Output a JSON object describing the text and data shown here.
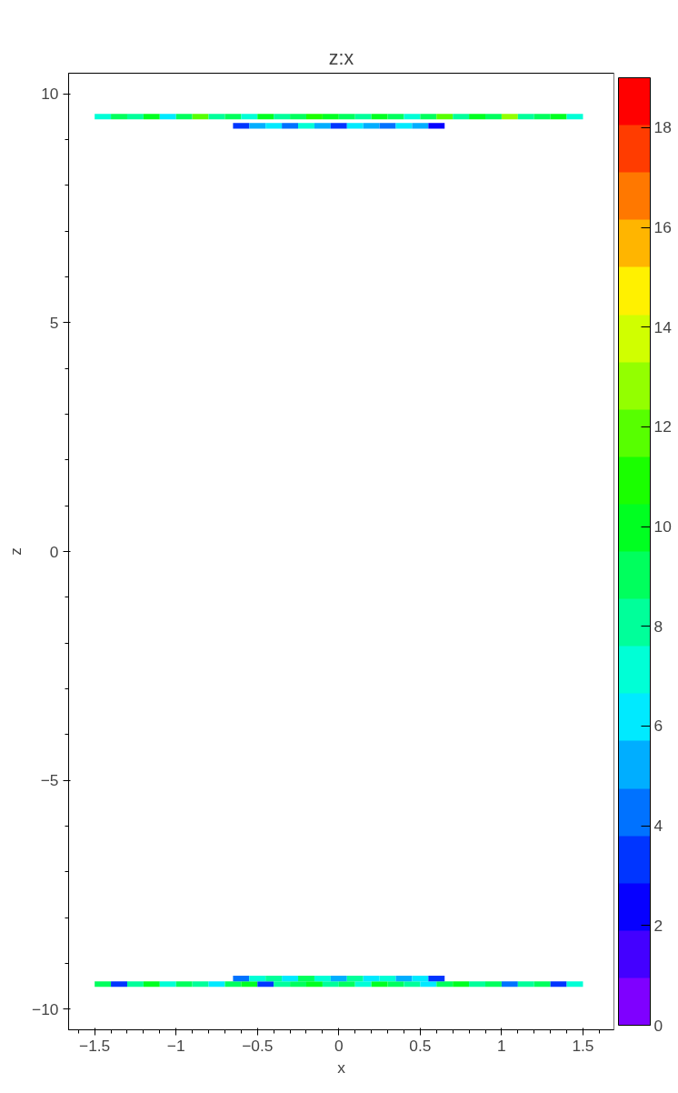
{
  "chart_data": {
    "type": "scatter",
    "title": "z:x",
    "xlabel": "x",
    "ylabel": "z",
    "marker": "square",
    "grid": false,
    "xlim": [
      -1.66,
      1.69
    ],
    "ylim": [
      -10.45,
      10.45
    ],
    "xticks": [
      -1.5,
      -1,
      -0.5,
      0,
      0.5,
      1,
      1.5
    ],
    "yticks": [
      -10,
      -5,
      0,
      5,
      10
    ],
    "clim": [
      0,
      19
    ],
    "cticks": [
      0,
      2,
      4,
      6,
      8,
      10,
      12,
      14,
      16,
      18
    ],
    "x": [
      -1.45,
      -1.35,
      -1.25,
      -1.15,
      -1.05,
      -0.95,
      -0.85,
      -0.75,
      -0.65,
      -0.55,
      -0.45,
      -0.35,
      -0.25,
      -0.15,
      -0.05,
      0.05,
      0.15,
      0.25,
      0.35,
      0.45,
      0.55,
      0.65,
      0.75,
      0.85,
      0.95,
      1.05,
      1.15,
      1.25,
      1.35,
      1.45,
      -0.6,
      -0.5,
      -0.4,
      -0.3,
      -0.2,
      -0.1,
      0,
      0.1,
      0.2,
      0.3,
      0.4,
      0.5,
      0.6,
      -1.45,
      -1.35,
      -1.25,
      -1.15,
      -1.05,
      -0.95,
      -0.85,
      -0.75,
      -0.65,
      -0.55,
      -0.45,
      -0.35,
      -0.25,
      -0.15,
      -0.05,
      0.05,
      0.15,
      0.25,
      0.35,
      0.45,
      0.55,
      0.65,
      0.75,
      0.85,
      0.95,
      1.05,
      1.15,
      1.25,
      1.35,
      1.45,
      -0.6,
      -0.5,
      -0.4,
      -0.3,
      -0.2,
      -0.1,
      0,
      0.1,
      0.2,
      0.3,
      0.4,
      0.5,
      0.6
    ],
    "values": [
      9.5,
      9.5,
      9.5,
      9.5,
      9.5,
      9.5,
      9.5,
      9.5,
      9.5,
      9.5,
      9.5,
      9.5,
      9.5,
      9.5,
      9.5,
      9.5,
      9.5,
      9.5,
      9.5,
      9.5,
      9.5,
      9.5,
      9.5,
      9.5,
      9.5,
      9.5,
      9.5,
      9.5,
      9.5,
      9.5,
      9.3,
      9.3,
      9.3,
      9.3,
      9.3,
      9.3,
      9.3,
      9.3,
      9.3,
      9.3,
      9.3,
      9.3,
      9.3,
      -9.45,
      -9.45,
      -9.45,
      -9.45,
      -9.45,
      -9.45,
      -9.45,
      -9.45,
      -9.45,
      -9.45,
      -9.45,
      -9.45,
      -9.45,
      -9.45,
      -9.45,
      -9.45,
      -9.45,
      -9.45,
      -9.45,
      -9.45,
      -9.45,
      -9.45,
      -9.45,
      -9.45,
      -9.45,
      -9.45,
      -9.45,
      -9.45,
      -9.45,
      -9.45,
      -9.33,
      -9.33,
      -9.33,
      -9.33,
      -9.33,
      -9.33,
      -9.33,
      -9.33,
      -9.33,
      -9.33,
      -9.33,
      -9.33,
      -9.33
    ],
    "cvalues": [
      7,
      9,
      8,
      10,
      6,
      9,
      12,
      8,
      9,
      7,
      10,
      8,
      9,
      11,
      10,
      9,
      8,
      10,
      9,
      7,
      9,
      12,
      8,
      10,
      9,
      13,
      8,
      9,
      10,
      7,
      3,
      5,
      6,
      4,
      7,
      5,
      3,
      6,
      5,
      4,
      6,
      5,
      2,
      9,
      3,
      8,
      10,
      7,
      9,
      8,
      6,
      9,
      10,
      3,
      8,
      9,
      10,
      8,
      9,
      7,
      10,
      9,
      8,
      6,
      9,
      10,
      8,
      9,
      4,
      8,
      9,
      3,
      7,
      4,
      7,
      8,
      6,
      9,
      7,
      5,
      8,
      6,
      7,
      5,
      6,
      3
    ]
  }
}
